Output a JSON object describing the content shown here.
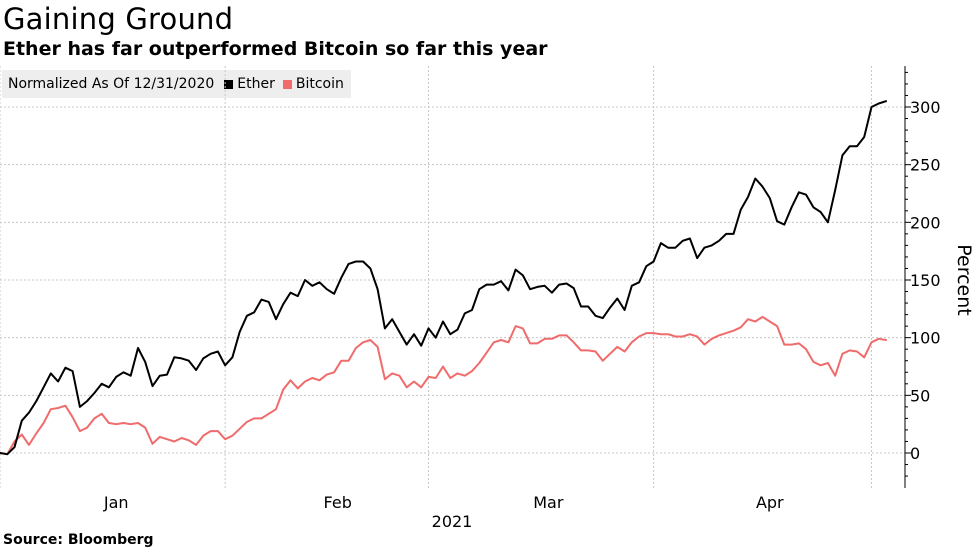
{
  "chart_data": {
    "type": "line",
    "title": "Gaining Ground",
    "subtitle": "Ether has far outperformed Bitcoin so far this year",
    "note": "Normalized As Of 12/31/2020",
    "source": "Source: Bloomberg",
    "ylabel": "Percent",
    "xlabel": "2021",
    "ylim": [
      -30,
      335
    ],
    "yticks": [
      0,
      50,
      100,
      150,
      200,
      250,
      300
    ],
    "xlim": [
      0,
      122
    ],
    "xticks": [
      {
        "label": "Jan",
        "x": 16
      },
      {
        "label": "Feb",
        "x": 46.5
      },
      {
        "label": "Mar",
        "x": 75.5
      },
      {
        "label": "Apr",
        "x": 106
      }
    ],
    "month_dividers": [
      0,
      31,
      59,
      90,
      120
    ],
    "series": [
      {
        "name": "Ether",
        "color": "#000000",
        "values": [
          0,
          -1,
          5,
          28,
          35,
          45,
          57,
          69,
          62,
          74,
          71,
          40,
          45,
          52,
          60,
          57,
          66,
          70,
          67,
          91,
          79,
          58,
          67,
          68,
          83,
          82,
          80,
          72,
          82,
          86,
          88,
          76,
          83,
          105,
          119,
          122,
          133,
          131,
          116,
          129,
          139,
          136,
          150,
          145,
          148,
          142,
          138,
          152,
          164,
          166,
          166,
          160,
          142,
          108,
          116,
          105,
          94,
          103,
          93,
          108,
          100,
          114,
          103,
          107,
          121,
          124,
          142,
          146,
          146,
          149,
          141,
          159,
          154,
          142,
          144,
          145,
          139,
          146,
          147,
          143,
          127,
          127,
          119,
          117,
          126,
          134,
          124,
          145,
          148,
          162,
          166,
          182,
          178,
          178,
          184,
          186,
          169,
          178,
          180,
          184,
          190,
          190,
          211,
          222,
          238,
          231,
          221,
          201,
          198,
          213,
          226,
          224,
          213,
          209,
          200,
          228,
          258,
          266,
          266,
          274,
          300,
          303,
          305
        ]
      },
      {
        "name": "Bitcoin",
        "color": "#f06b6b",
        "values": [
          0,
          -1,
          10,
          16,
          7,
          17,
          26,
          38,
          39,
          41,
          31,
          19,
          22,
          30,
          34,
          26,
          25,
          26,
          25,
          26,
          22,
          8,
          14,
          12,
          10,
          13,
          11,
          7,
          15,
          19,
          19,
          12,
          15,
          21,
          27,
          30,
          30,
          34,
          38,
          55,
          63,
          56,
          62,
          65,
          63,
          68,
          70,
          80,
          80,
          91,
          96,
          98,
          92,
          64,
          69,
          67,
          57,
          62,
          57,
          66,
          65,
          75,
          65,
          69,
          67,
          71,
          78,
          87,
          96,
          98,
          96,
          110,
          108,
          95,
          95,
          99,
          99,
          102,
          102,
          96,
          89,
          89,
          88,
          80,
          86,
          92,
          88,
          96,
          101,
          104,
          104,
          103,
          103,
          101,
          101,
          103,
          101,
          94,
          99,
          102,
          104,
          106,
          109,
          116,
          114,
          118,
          114,
          110,
          94,
          94,
          95,
          90,
          79,
          76,
          78,
          67,
          86,
          89,
          88,
          83,
          96,
          99,
          98
        ]
      }
    ]
  }
}
